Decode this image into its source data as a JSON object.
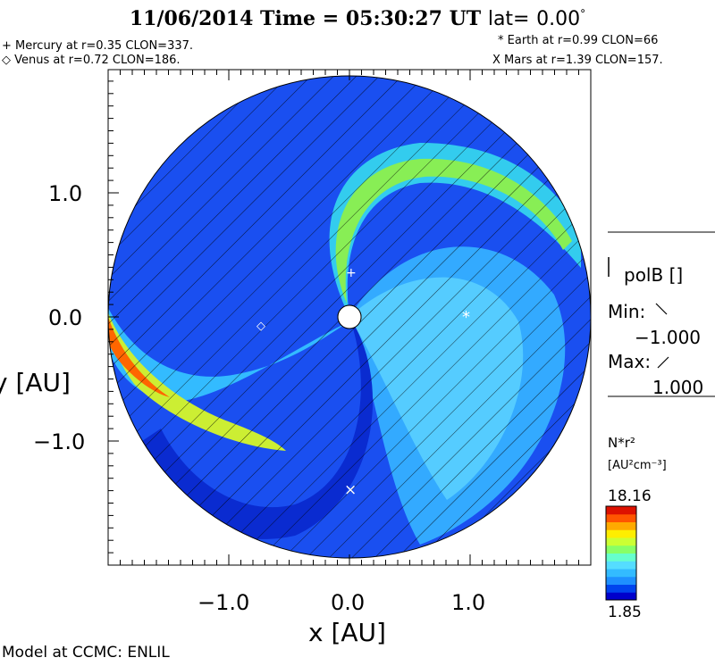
{
  "header": {
    "date": "11/06/2014",
    "time_label": "Time =",
    "time": "05:30:27",
    "time_unit": "UT",
    "lat_label": "lat=",
    "lat_value": "0.00",
    "lat_unit": "°"
  },
  "planets": {
    "mercury": "+ Mercury at r=0.35 CLON=337.",
    "venus": "◇ Venus at r=0.72 CLON=186.",
    "earth": "* Earth at  r=0.99 CLON=66",
    "mars": "X Mars at r=1.39 CLON=157."
  },
  "axes": {
    "x_label": "x [AU]",
    "y_label": "y [AU]",
    "x_ticks": [
      "−1.0",
      "0.0",
      "1.0"
    ],
    "y_ticks": [
      "1.0",
      "0.0",
      "−1.0"
    ],
    "x_range": [
      -2.0,
      2.0
    ],
    "y_range": [
      -2.0,
      2.0
    ]
  },
  "polarity_legend": {
    "title": "polB []",
    "min_label": "Min:",
    "min_value": "−1.000",
    "max_label": "Max:",
    "max_value": "1.000"
  },
  "colorbar": {
    "label": "N*r²",
    "unit": "[AU²cm⁻³]",
    "max": "18.16",
    "min": "1.85",
    "colors": [
      "#0000cc",
      "#0044ee",
      "#1e90ff",
      "#33bbff",
      "#55ddff",
      "#66ffcc",
      "#88ff66",
      "#ccff33",
      "#ffee00",
      "#ffaa00",
      "#ff5500",
      "#dd1100"
    ]
  },
  "footer": {
    "credit": "Model at CCMC: ENLIL"
  },
  "markers": {
    "earth": "*",
    "mars": "×",
    "venus": "◇",
    "mercury": "+"
  }
}
